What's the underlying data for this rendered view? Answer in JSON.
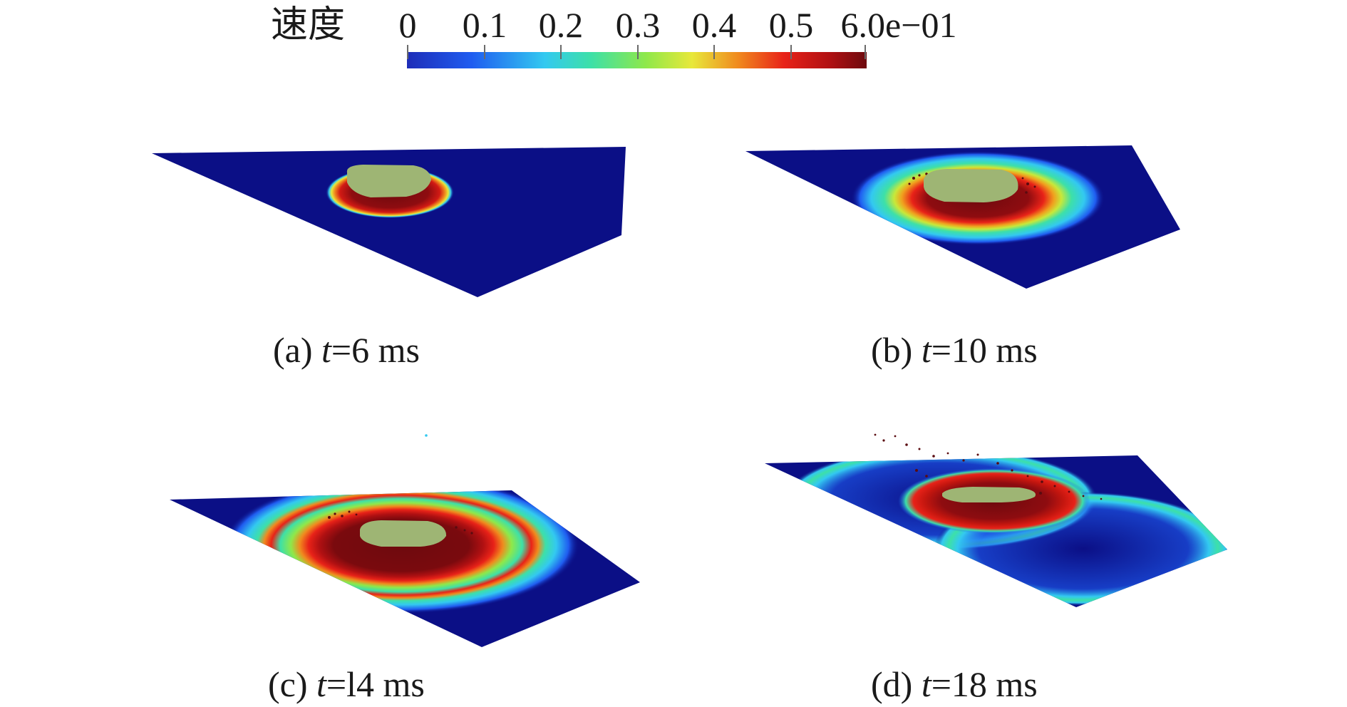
{
  "colorbar": {
    "title": "速度",
    "tick_labels": [
      "0",
      "0.1",
      "0.2",
      "0.3",
      "0.4",
      "0.5",
      "6.0e−01"
    ],
    "range": [
      0,
      0.6
    ],
    "colormap": [
      "#1e2db8",
      "#1f5cf0",
      "#33c9f0",
      "#3de0a8",
      "#8fe84a",
      "#e8e83a",
      "#f08a1e",
      "#e82218",
      "#b01012",
      "#6e0a0e"
    ]
  },
  "panels": [
    {
      "id": "a",
      "prefix": "(a) ",
      "var": "t",
      "suffix": "=6 ms"
    },
    {
      "id": "b",
      "prefix": "(b) ",
      "var": "t",
      "suffix": "=10 ms"
    },
    {
      "id": "c",
      "prefix": "(c) ",
      "var": "t",
      "suffix": "=l4 ms"
    },
    {
      "id": "d",
      "prefix": "(d) ",
      "var": "t",
      "suffix": "=18 ms"
    }
  ],
  "colors": {
    "plate": "#0b0f86",
    "fragment": "#9eb574",
    "debris": "#5a0b10"
  }
}
